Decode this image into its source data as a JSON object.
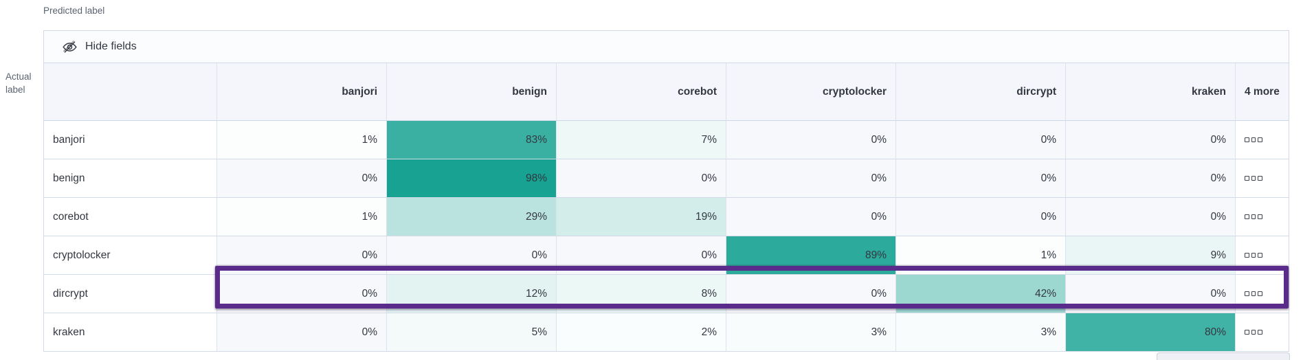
{
  "axis": {
    "predicted": "Predicted label",
    "actual": "Actual label"
  },
  "toolbar": {
    "hide_fields_label": "Hide fields",
    "hide_fields_icon": "eye-closed-icon"
  },
  "matrix": {
    "predicted_columns": [
      "banjori",
      "benign",
      "corebot",
      "cryptolocker",
      "dircrypt",
      "kraken"
    ],
    "more_column_label": "4 more",
    "row_actions_icon": "boxes-horizontal-icon",
    "value_suffix": "%",
    "rows": [
      {
        "label": "banjori",
        "values": [
          1,
          83,
          7,
          0,
          0,
          0
        ],
        "highlighted": false
      },
      {
        "label": "benign",
        "values": [
          0,
          98,
          0,
          0,
          0,
          0
        ],
        "highlighted": false
      },
      {
        "label": "corebot",
        "values": [
          1,
          29,
          19,
          0,
          0,
          0
        ],
        "highlighted": false
      },
      {
        "label": "cryptolocker",
        "values": [
          0,
          0,
          0,
          89,
          1,
          9
        ],
        "highlighted": false
      },
      {
        "label": "dircrypt",
        "values": [
          0,
          12,
          8,
          0,
          42,
          0
        ],
        "highlighted": true
      },
      {
        "label": "kraken",
        "values": [
          0,
          5,
          2,
          3,
          3,
          80
        ],
        "highlighted": false
      }
    ]
  },
  "colors": {
    "heat_rgb": "18,160,144",
    "zero_cell_bg": "#f6f8fb",
    "highlight_border": "#5b2b8c",
    "panel_border": "#d3dae6",
    "header_bg": "#f4f6fb",
    "text": "#343741",
    "subdued_text": "#5a6270"
  },
  "chart_data": {
    "type": "heatmap",
    "xlabel": "Predicted label",
    "ylabel": "Actual label",
    "x_categories": [
      "banjori",
      "benign",
      "corebot",
      "cryptolocker",
      "dircrypt",
      "kraken"
    ],
    "x_hidden_columns": "4 more",
    "y_categories": [
      "banjori",
      "benign",
      "corebot",
      "cryptolocker",
      "dircrypt",
      "kraken"
    ],
    "values_percent": [
      [
        1,
        83,
        7,
        0,
        0,
        0
      ],
      [
        0,
        98,
        0,
        0,
        0,
        0
      ],
      [
        1,
        29,
        19,
        0,
        0,
        0
      ],
      [
        0,
        0,
        0,
        89,
        1,
        9
      ],
      [
        0,
        12,
        8,
        0,
        42,
        0
      ],
      [
        0,
        5,
        2,
        3,
        3,
        80
      ]
    ],
    "unit": "%",
    "color_scale": "white to teal (#12a090), intensity proportional to value",
    "highlighted_row": "dircrypt",
    "grid": true,
    "legend_position": "none"
  }
}
